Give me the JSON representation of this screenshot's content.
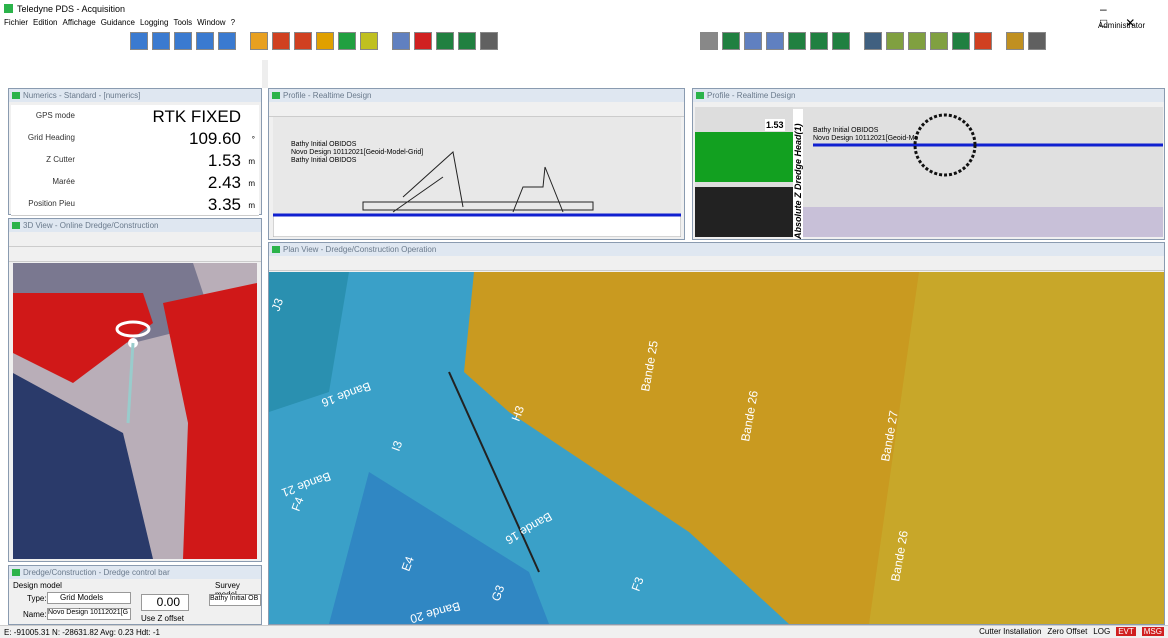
{
  "app": {
    "title": "Teledyne PDS - Acquisition",
    "menu": [
      "Fichier",
      "Edition",
      "Affichage",
      "Guidance",
      "Logging",
      "Tools",
      "Window",
      "?"
    ],
    "user": "Administrator"
  },
  "numerics": {
    "title": "Numerics - Standard - [numerics]",
    "rows": [
      {
        "label": "GPS mode",
        "value": "RTK FIXED",
        "unit": ""
      },
      {
        "label": "Grid Heading",
        "value": "109.60",
        "unit": "°"
      },
      {
        "label": "Z Cutter",
        "value": "1.53",
        "unit": "m"
      },
      {
        "label": "Marée",
        "value": "2.43",
        "unit": "m"
      },
      {
        "label": "Position Pieu",
        "value": "3.35",
        "unit": "m"
      }
    ]
  },
  "view3d": {
    "title": "3D View - Online Dredge/Construction"
  },
  "profile1": {
    "title": "Profile - Realtime Design",
    "legend": [
      "Bathy Initial OBIDOS",
      "Novo Design 10112021[Geoid-Model-Grid]",
      "Bathy Initial OBIDOS"
    ]
  },
  "profile2": {
    "title": "Profile - Realtime Design",
    "legend": [
      "Bathy Initial OBIDOS",
      "Novo Design 10112021[Geoid-Mo"
    ],
    "depth": "1.53",
    "axis": "Absolute Z Dredge Head(1)"
  },
  "plan": {
    "title": "Plan View - Dredge/Construction Operation",
    "labels": [
      "Bande 25",
      "Bande 26",
      "Bande 27",
      "Bande 16",
      "Bande 16",
      "Bande 20",
      "Bande 21",
      "Bande 26",
      "J3",
      "I3",
      "H3",
      "F4",
      "G3",
      "F3",
      "E4"
    ]
  },
  "control": {
    "title": "Dredge/Construction - Dredge control bar",
    "design": "Design model",
    "survey": "Survey model",
    "type_label": "Type:",
    "type": "Grid Models",
    "name_label": "Name:",
    "name": "Novo Design 10112021[G",
    "survey_name": "Bathy Initial OB",
    "offset": "0.00",
    "use_offset": "Use Z offset"
  },
  "status": {
    "coords": "E: -91005.31 N: -28631.82 Avg: 0.23 Hdt: -1",
    "items": [
      "Cutter Installation",
      "Zero Offset",
      "LOG",
      "EVT",
      "MSG"
    ]
  }
}
